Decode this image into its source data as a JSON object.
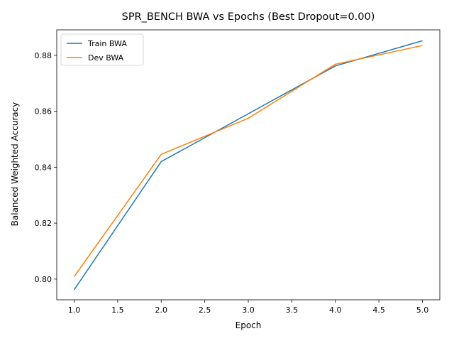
{
  "chart_data": {
    "type": "line",
    "title": "SPR_BENCH BWA vs Epochs (Best Dropout=0.00)",
    "xlabel": "Epoch",
    "ylabel": "Balanced Weighted Accuracy",
    "x": [
      1.0,
      2.0,
      3.0,
      4.0,
      5.0
    ],
    "xlim": [
      0.8,
      5.2
    ],
    "ylim": [
      0.7926,
      0.8891
    ],
    "xticks": [
      1.0,
      1.5,
      2.0,
      2.5,
      3.0,
      3.5,
      4.0,
      4.5,
      5.0
    ],
    "xtick_labels": [
      "1.0",
      "1.5",
      "2.0",
      "2.5",
      "3.0",
      "3.5",
      "4.0",
      "4.5",
      "5.0"
    ],
    "yticks": [
      0.8,
      0.82,
      0.84,
      0.86,
      0.88
    ],
    "ytick_labels": [
      "0.80",
      "0.82",
      "0.84",
      "0.86",
      "0.88"
    ],
    "grid": false,
    "legend_position": "top-left",
    "series": [
      {
        "name": "Train BWA",
        "color": "#1f77b4",
        "values": [
          0.7962,
          0.842,
          0.8591,
          0.8762,
          0.8852
        ]
      },
      {
        "name": "Dev BWA",
        "color": "#ff7f0e",
        "values": [
          0.8009,
          0.8446,
          0.8575,
          0.8768,
          0.8835
        ]
      }
    ]
  }
}
